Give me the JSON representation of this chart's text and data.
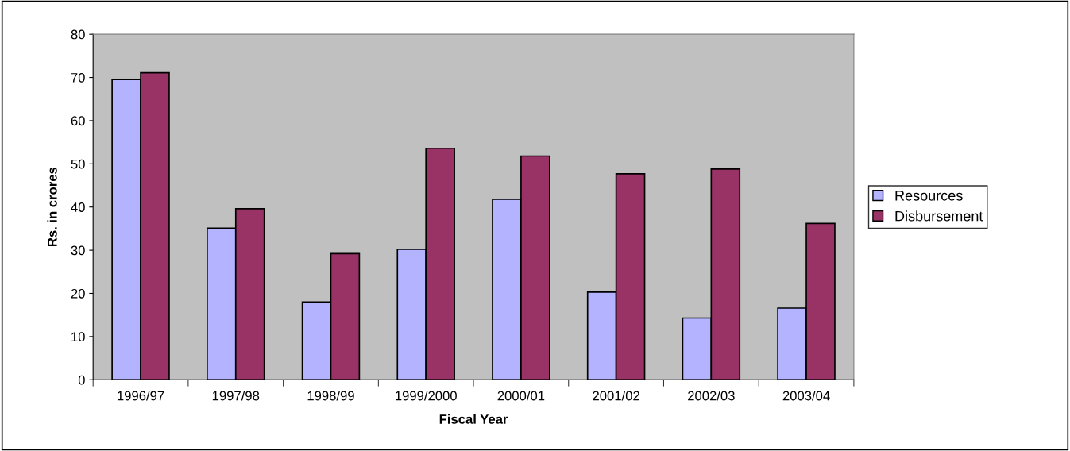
{
  "chart_data": {
    "type": "bar",
    "xlabel": "Fiscal Year",
    "ylabel": "Rs. in crores",
    "categories": [
      "1996/97",
      "1997/98",
      "1998/99",
      "1999/2000",
      "2000/01",
      "2001/02",
      "2002/03",
      "2003/04"
    ],
    "series": [
      {
        "name": "Resources",
        "color": "#b3b3ff",
        "values": [
          69.5,
          35.1,
          18.0,
          30.2,
          41.8,
          20.3,
          14.3,
          16.6
        ]
      },
      {
        "name": "Disbursement",
        "color": "#993366",
        "values": [
          71.1,
          39.6,
          29.2,
          53.6,
          51.8,
          47.7,
          48.8,
          36.2
        ]
      }
    ],
    "ylim": [
      0,
      80
    ],
    "yticks": [
      0,
      10,
      20,
      30,
      40,
      50,
      60,
      70,
      80
    ],
    "grid": false,
    "legend": "right"
  }
}
